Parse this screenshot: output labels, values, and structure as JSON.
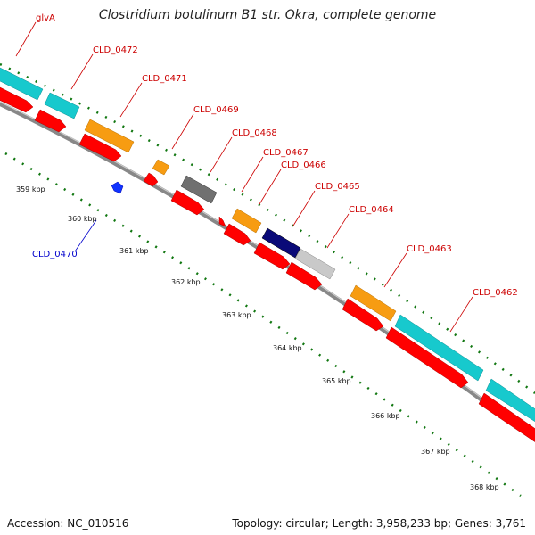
{
  "title": "Clostridium botulinum B1 str. Okra, complete genome",
  "footer": {
    "accession": "Accession: NC_010516",
    "summary": "Topology: circular; Length: 3,958,233 bp; Genes: 3,761"
  },
  "colors": {
    "cds_forward": "#ff0000",
    "cds_label": "#cc0000",
    "reverse_label": "#0000cc",
    "track_cyan": "#17c9cd",
    "track_orange": "#f79c12",
    "track_darkgray": "#707070",
    "track_navy": "#0a0a78",
    "track_lightgray": "#c9c9c9",
    "reverse_blue": "#1033ff",
    "backbone": "#888888",
    "gc_dots": "#117711"
  },
  "gene_labels": [
    {
      "name": "glvA",
      "strand": "forward"
    },
    {
      "name": "CLD_0472",
      "strand": "forward"
    },
    {
      "name": "CLD_0471",
      "strand": "forward"
    },
    {
      "name": "CLD_0469",
      "strand": "forward"
    },
    {
      "name": "CLD_0468",
      "strand": "forward"
    },
    {
      "name": "CLD_0467",
      "strand": "forward"
    },
    {
      "name": "CLD_0466",
      "strand": "forward"
    },
    {
      "name": "CLD_0465",
      "strand": "forward"
    },
    {
      "name": "CLD_0464",
      "strand": "forward"
    },
    {
      "name": "CLD_0463",
      "strand": "forward"
    },
    {
      "name": "CLD_0462",
      "strand": "forward"
    },
    {
      "name": "CLD_0470",
      "strand": "reverse"
    }
  ],
  "ticks": [
    "359 kbp",
    "360 kbp",
    "361 kbp",
    "362 kbp",
    "363 kbp",
    "364 kbp",
    "365 kbp",
    "366 kbp",
    "367 kbp",
    "368 kbp"
  ]
}
